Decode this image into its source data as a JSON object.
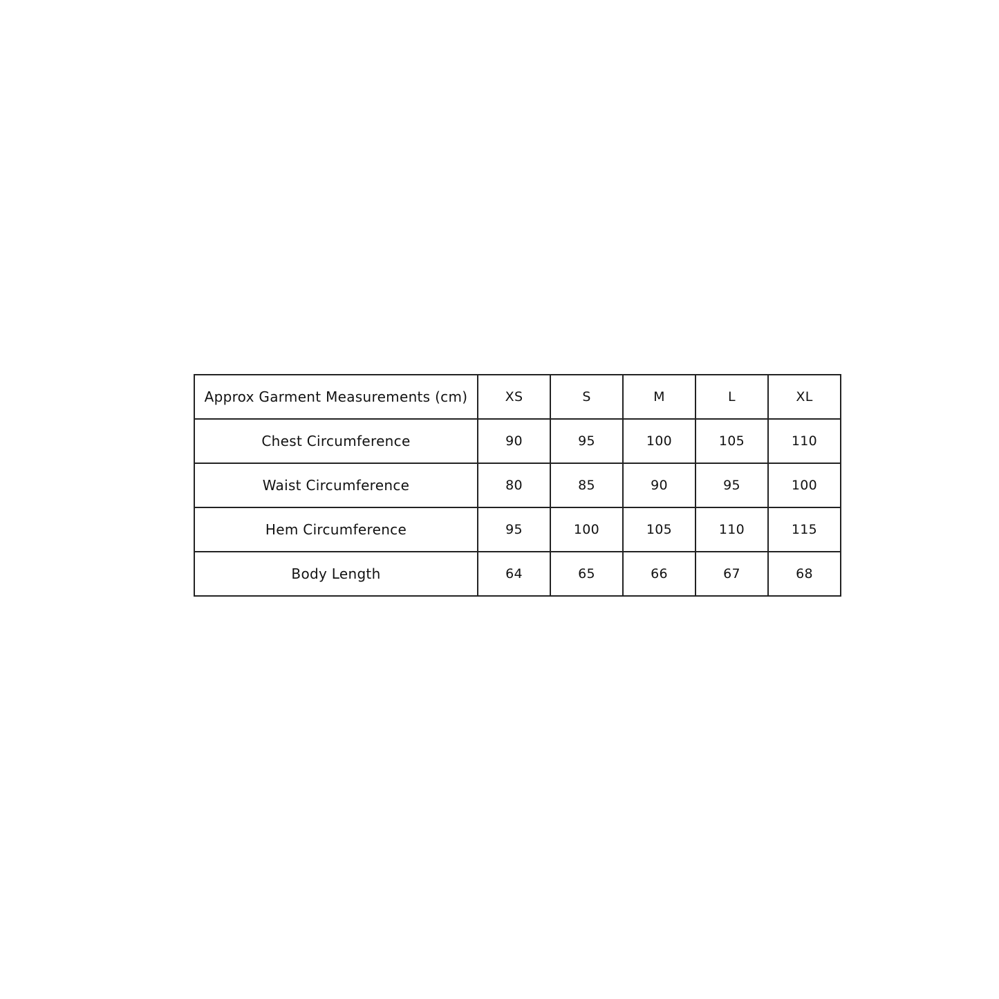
{
  "table": {
    "header": [
      "Approx Garment Measurements (cm)",
      "XS",
      "S",
      "M",
      "L",
      "XL"
    ],
    "rows": [
      {
        "label": "Chest Circumference",
        "values": [
          "90",
          "95",
          "100",
          "105",
          "110"
        ]
      },
      {
        "label": "Waist Circumference",
        "values": [
          "80",
          "85",
          "90",
          "95",
          "100"
        ]
      },
      {
        "label": "Hem Circumference",
        "values": [
          "95",
          "100",
          "105",
          "110",
          "115"
        ]
      },
      {
        "label": "Body Length",
        "values": [
          "64",
          "65",
          "66",
          "67",
          "68"
        ]
      }
    ]
  }
}
